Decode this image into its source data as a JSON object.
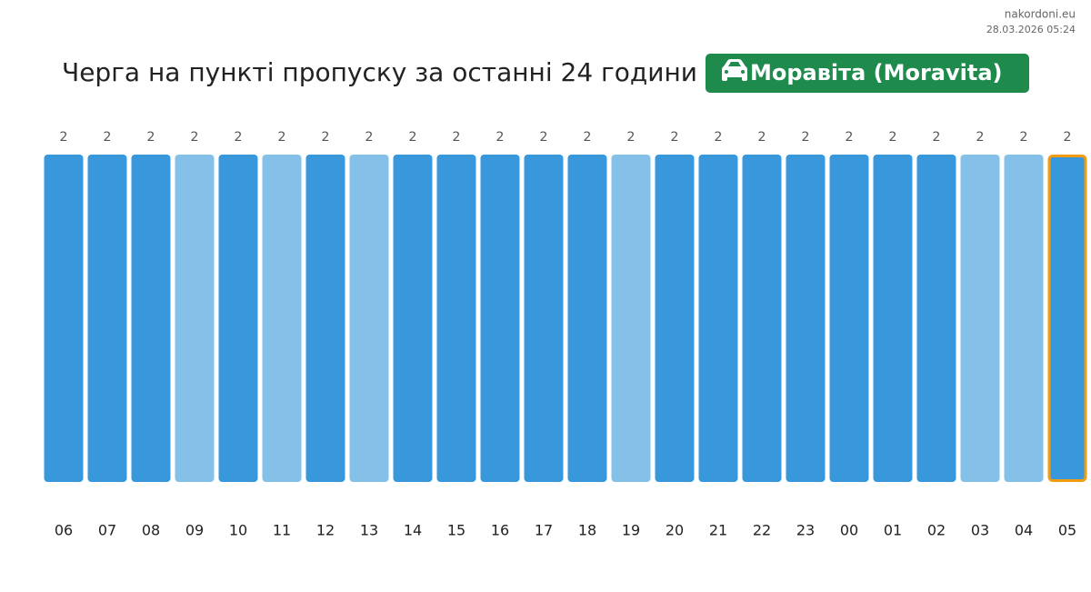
{
  "site": "nakordoni.eu",
  "timestamp": "28.03.2026 05:24",
  "chart_data": {
    "type": "bar",
    "title": "Черга на пункті пропуску за останні 24 години",
    "badge": "Моравіта (Moravita)",
    "badge_color": "#1e8a4c",
    "categories": [
      "06",
      "07",
      "08",
      "09",
      "10",
      "11",
      "12",
      "13",
      "14",
      "15",
      "16",
      "17",
      "18",
      "19",
      "20",
      "21",
      "22",
      "23",
      "00",
      "01",
      "02",
      "03",
      "04",
      "05"
    ],
    "values": [
      2,
      2,
      2,
      2,
      2,
      2,
      2,
      2,
      2,
      2,
      2,
      2,
      2,
      2,
      2,
      2,
      2,
      2,
      2,
      2,
      2,
      2,
      2,
      2
    ],
    "colors": [
      "#3898db",
      "#3898db",
      "#3898db",
      "#85c0e9",
      "#3898db",
      "#85c0e9",
      "#3898db",
      "#85c0e9",
      "#3898db",
      "#3898db",
      "#3898db",
      "#3898db",
      "#3898db",
      "#85c0e9",
      "#3898db",
      "#3898db",
      "#3898db",
      "#3898db",
      "#3898db",
      "#3898db",
      "#3898db",
      "#85c0e9",
      "#85c0e9",
      "#3898db"
    ],
    "border_colors": [
      null,
      null,
      null,
      null,
      null,
      null,
      null,
      null,
      null,
      null,
      null,
      null,
      null,
      null,
      null,
      null,
      null,
      null,
      null,
      null,
      null,
      null,
      null,
      "#f39c12"
    ],
    "ylim": [
      0,
      2
    ]
  }
}
